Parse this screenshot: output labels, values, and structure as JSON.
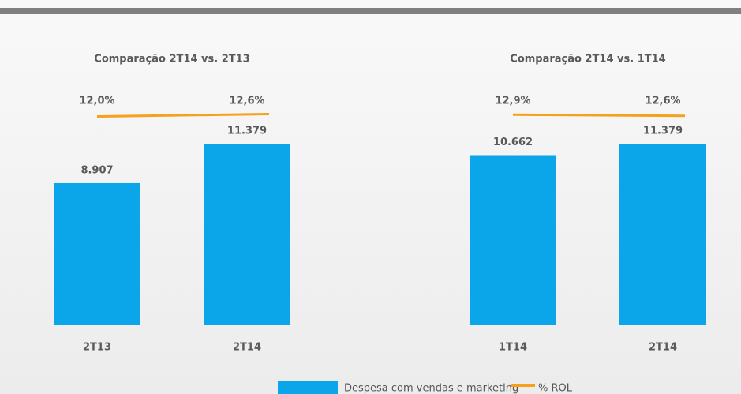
{
  "chart_data": [
    {
      "type": "bar",
      "title": "Comparação 2T14 vs. 2T13",
      "categories": [
        "2T13",
        "2T14"
      ],
      "series": [
        {
          "name": "Despesa com vendas e marketing",
          "color": "#0ba5ea",
          "values": [
            8907,
            11379
          ],
          "value_labels": [
            "8.907",
            "11.379"
          ]
        },
        {
          "name": "% ROL",
          "type": "line",
          "color": "#f5a11c",
          "values": [
            12.0,
            12.6
          ],
          "value_labels": [
            "12,0%",
            "12,6%"
          ]
        }
      ]
    },
    {
      "type": "bar",
      "title": "Comparação 2T14 vs. 1T14",
      "categories": [
        "1T14",
        "2T14"
      ],
      "series": [
        {
          "name": "Despesa com vendas e marketing",
          "color": "#0ba5ea",
          "values": [
            10662,
            11379
          ],
          "value_labels": [
            "10.662",
            "11.379"
          ]
        },
        {
          "name": "% ROL",
          "type": "line",
          "color": "#f5a11c",
          "values": [
            12.9,
            12.6
          ],
          "value_labels": [
            "12,9%",
            "12,6%"
          ]
        }
      ]
    }
  ]
}
